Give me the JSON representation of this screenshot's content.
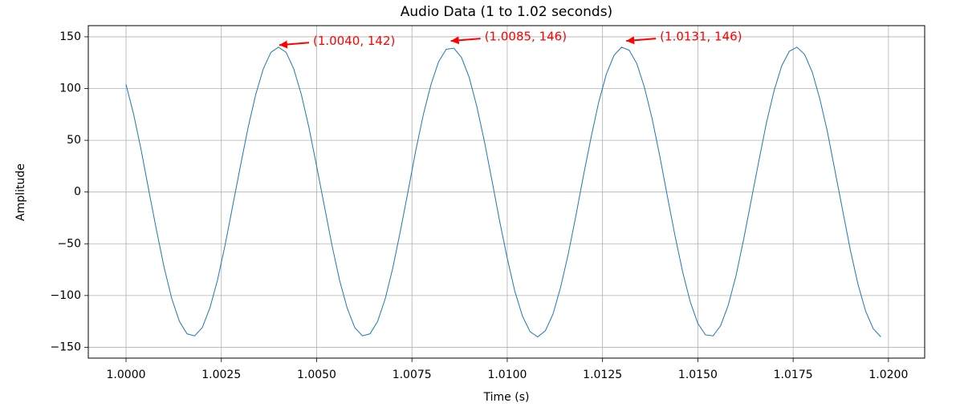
{
  "chart_data": {
    "type": "line",
    "title": "Audio Data (1 to 1.02 seconds)",
    "xlabel": "Time (s)",
    "ylabel": "Amplitude",
    "x": [
      1.0,
      1.0002,
      1.0004,
      1.0006,
      1.0008,
      1.001,
      1.0012,
      1.0014,
      1.0016,
      1.0018,
      1.002,
      1.0022,
      1.0024,
      1.0026,
      1.0028,
      1.003,
      1.0032,
      1.0034,
      1.0036,
      1.0038,
      1.004,
      1.0042,
      1.0044,
      1.0046,
      1.0048,
      1.005,
      1.0052,
      1.0054,
      1.0056,
      1.0058,
      1.006,
      1.0062,
      1.0064,
      1.0066,
      1.0068,
      1.007,
      1.0072,
      1.0074,
      1.0076,
      1.0078,
      1.008,
      1.0082,
      1.0084,
      1.0086,
      1.0088,
      1.009,
      1.0092,
      1.0094,
      1.0096,
      1.0098,
      1.01,
      1.0102,
      1.0104,
      1.0106,
      1.0108,
      1.011,
      1.0112,
      1.0114,
      1.0116,
      1.0118,
      1.012,
      1.0122,
      1.0124,
      1.0126,
      1.0128,
      1.013,
      1.0132,
      1.0134,
      1.0136,
      1.0138,
      1.014,
      1.0142,
      1.0144,
      1.0146,
      1.0148,
      1.015,
      1.0152,
      1.0154,
      1.0156,
      1.0158,
      1.016,
      1.0162,
      1.0164,
      1.0166,
      1.0168,
      1.017,
      1.0172,
      1.0174,
      1.0176,
      1.0178,
      1.018,
      1.0182,
      1.0184,
      1.0186,
      1.0188,
      1.019,
      1.0192,
      1.0194,
      1.0196,
      1.0198
    ],
    "series": [
      {
        "name": "Audio",
        "color": "#1f77b4",
        "values": [
          104,
          75,
          40,
          1,
          -37,
          -73,
          -103,
          -125,
          -137,
          -139,
          -131,
          -112,
          -85,
          -51,
          -13,
          25,
          62,
          94,
          119,
          135,
          140,
          135,
          119,
          94,
          62,
          25,
          -13,
          -51,
          -85,
          -112,
          -131,
          -139,
          -137,
          -125,
          -103,
          -73,
          -37,
          1,
          40,
          75,
          104,
          126,
          138,
          139,
          130,
          111,
          83,
          49,
          11,
          -28,
          -64,
          -96,
          -120,
          -135,
          -140,
          -134,
          -118,
          -92,
          -60,
          -23,
          16,
          53,
          87,
          114,
          132,
          140,
          137,
          124,
          101,
          71,
          35,
          -4,
          -42,
          -77,
          -106,
          -127,
          -138,
          -139,
          -129,
          -109,
          -81,
          -46,
          -8,
          30,
          67,
          98,
          122,
          136,
          140,
          133,
          116,
          90,
          58,
          20,
          -18,
          -56,
          -89,
          -115,
          -132,
          -140
        ]
      }
    ],
    "annotations": [
      {
        "text": "(1.0040, 142)",
        "x": 1.004,
        "y": 142,
        "color": "#ff0000"
      },
      {
        "text": "(1.0085, 146)",
        "x": 1.0085,
        "y": 146,
        "color": "#ff0000"
      },
      {
        "text": "(1.0131, 146)",
        "x": 1.0131,
        "y": 146,
        "color": "#ff0000"
      }
    ],
    "xlim": [
      0.99901,
      1.02095
    ],
    "ylim": [
      -160.5,
      160.8
    ],
    "xticks": [
      {
        "value": 1.0,
        "label": "1.0000"
      },
      {
        "value": 1.0025,
        "label": "1.0025"
      },
      {
        "value": 1.005,
        "label": "1.0050"
      },
      {
        "value": 1.0075,
        "label": "1.0075"
      },
      {
        "value": 1.01,
        "label": "1.0100"
      },
      {
        "value": 1.0125,
        "label": "1.0125"
      },
      {
        "value": 1.015,
        "label": "1.0150"
      },
      {
        "value": 1.0175,
        "label": "1.0175"
      },
      {
        "value": 1.02,
        "label": "1.0200"
      }
    ],
    "yticks": [
      {
        "value": -150,
        "label": "−150"
      },
      {
        "value": -100,
        "label": "−100"
      },
      {
        "value": -50,
        "label": "−50"
      },
      0,
      50,
      100,
      150
    ],
    "grid": true
  }
}
